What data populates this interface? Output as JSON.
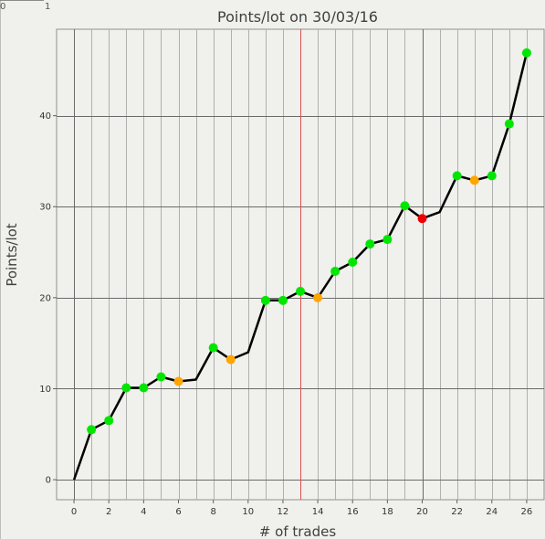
{
  "corner": {
    "left": "0",
    "right": "1"
  },
  "colors": {
    "background": "#f0f0ec",
    "gain": "#00e600",
    "breakeven": "#ffa500",
    "loss": "#ee0000",
    "line": "#000000",
    "major_grid": "#6a6a6a",
    "minor_grid": "#b0b0b0",
    "marker_line": "#e05050"
  },
  "chart_data": {
    "type": "line",
    "title": "Points/lot on 30/03/16",
    "xlabel": "# of trades",
    "ylabel": "Points/lot",
    "xlim": [
      -1,
      27
    ],
    "ylim": [
      -2.2,
      49.5
    ],
    "xticks": [
      0,
      2,
      4,
      6,
      8,
      10,
      12,
      14,
      16,
      18,
      20,
      22,
      24,
      26
    ],
    "yticks": [
      0,
      10,
      20,
      30,
      40
    ],
    "major_x_gridlines": [
      0,
      20
    ],
    "major_y_gridlines": [
      0,
      10,
      20,
      30,
      40
    ],
    "grid": true,
    "vertical_marker_x": 13,
    "series": [
      {
        "x": [
          0,
          1,
          2,
          3,
          4,
          5,
          6,
          7,
          8,
          9,
          10,
          11,
          12,
          13,
          14,
          15,
          16,
          17,
          18,
          19,
          20,
          21,
          22,
          23,
          24,
          25,
          26
        ],
        "y": [
          0,
          5.5,
          6.5,
          10.1,
          10.1,
          11.3,
          10.8,
          11.0,
          14.5,
          13.2,
          14.0,
          19.7,
          19.7,
          20.7,
          20.0,
          22.9,
          23.9,
          25.9,
          26.4,
          30.1,
          28.7,
          29.4,
          33.4,
          32.9,
          33.4,
          39.1,
          46.9
        ],
        "markers": [
          "none",
          "gain",
          "gain",
          "gain",
          "gain",
          "gain",
          "breakeven",
          "none",
          "gain",
          "breakeven",
          "none",
          "gain",
          "gain",
          "gain",
          "breakeven",
          "gain",
          "gain",
          "gain",
          "gain",
          "gain",
          "loss",
          "none",
          "gain",
          "breakeven",
          "gain",
          "gain",
          "gain"
        ]
      }
    ]
  }
}
